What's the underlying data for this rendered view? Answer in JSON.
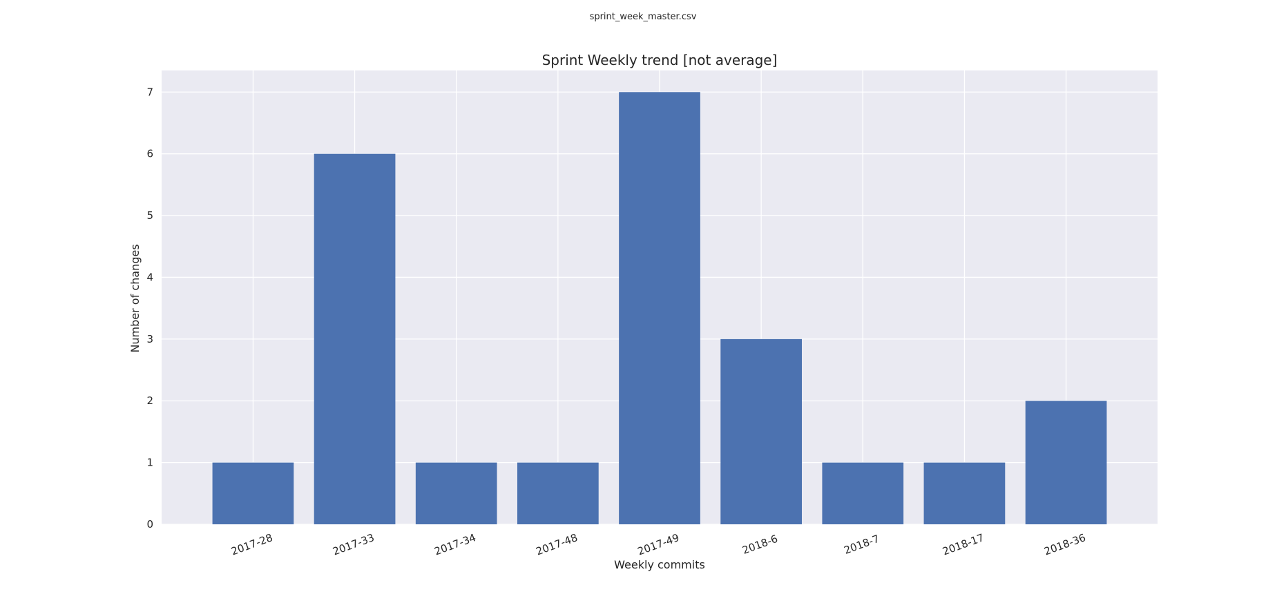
{
  "file_title": "sprint_week_master.csv",
  "chart_data": {
    "type": "bar",
    "title": "Sprint Weekly trend [not average]",
    "xlabel": "Weekly commits",
    "ylabel": "Number of changes",
    "categories": [
      "2017-28",
      "2017-33",
      "2017-34",
      "2017-48",
      "2017-49",
      "2018-6",
      "2018-7",
      "2018-17",
      "2018-36"
    ],
    "values": [
      1,
      6,
      1,
      1,
      7,
      3,
      1,
      1,
      2
    ],
    "ylim": [
      0,
      7.35
    ],
    "yticks": [
      0,
      1,
      2,
      3,
      4,
      5,
      6,
      7
    ],
    "grid": true,
    "bar_color": "#4c72b0",
    "plot_background": "#eaeaf2",
    "grid_color": "#ffffff",
    "x_tick_rotation_deg": -20
  }
}
